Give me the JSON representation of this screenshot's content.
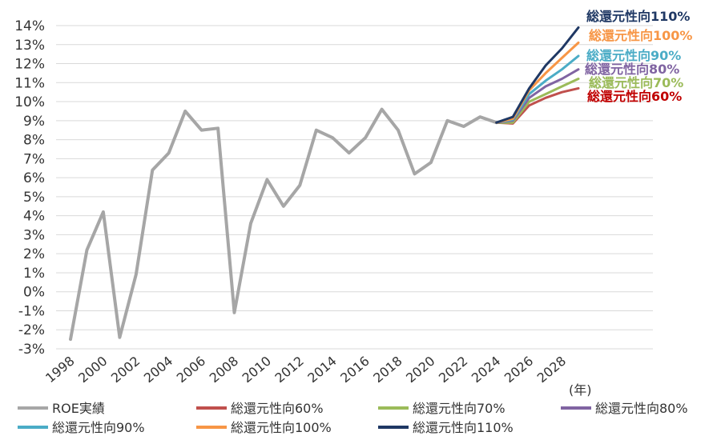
{
  "chart_data": {
    "type": "line",
    "unit_label": "(年)",
    "y_ticks": [
      "14%",
      "13%",
      "12%",
      "11%",
      "10%",
      "9%",
      "8%",
      "7%",
      "6%",
      "5%",
      "4%",
      "3%",
      "2%",
      "1%",
      "0%",
      "-1%",
      "-2%",
      "-3%"
    ],
    "ylim": [
      -3,
      14
    ],
    "x_tick_labels": [
      "1998",
      "2000",
      "2002",
      "2004",
      "2006",
      "2008",
      "2010",
      "2012",
      "2014",
      "2016",
      "2018",
      "2020",
      "2022",
      "2024",
      "2026",
      "2028"
    ],
    "xlim": [
      1998,
      2029
    ],
    "series": [
      {
        "name": "ROE実績",
        "color": "#a6a6a6",
        "width": 4,
        "x": [
          1998,
          1999,
          2000,
          2001,
          2002,
          2003,
          2004,
          2005,
          2006,
          2007,
          2008,
          2009,
          2010,
          2011,
          2012,
          2013,
          2014,
          2015,
          2016,
          2017,
          2018,
          2019,
          2020,
          2021,
          2022,
          2023,
          2024
        ],
        "values": [
          -2.5,
          2.2,
          4.2,
          -2.4,
          0.9,
          6.4,
          7.3,
          9.5,
          8.5,
          8.6,
          -1.1,
          3.6,
          5.9,
          4.5,
          5.6,
          8.5,
          8.1,
          7.3,
          8.1,
          9.6,
          8.5,
          6.2,
          6.8,
          9.0,
          8.7,
          9.2,
          8.9
        ]
      },
      {
        "name": "総還元性向60%",
        "color": "#c0504d",
        "width": 3,
        "x": [
          2024,
          2025,
          2026,
          2027,
          2028,
          2029
        ],
        "values": [
          8.9,
          8.85,
          9.8,
          10.2,
          10.5,
          10.7
        ]
      },
      {
        "name": "総還元性向70%",
        "color": "#9bbb59",
        "width": 3,
        "x": [
          2024,
          2025,
          2026,
          2027,
          2028,
          2029
        ],
        "values": [
          8.9,
          8.9,
          10.0,
          10.4,
          10.8,
          11.2
        ]
      },
      {
        "name": "総還元性向80%",
        "color": "#8064a2",
        "width": 3,
        "x": [
          2024,
          2025,
          2026,
          2027,
          2028,
          2029
        ],
        "values": [
          8.9,
          9.0,
          10.2,
          10.8,
          11.2,
          11.7
        ]
      },
      {
        "name": "総還元性向90%",
        "color": "#4bacc6",
        "width": 3,
        "x": [
          2024,
          2025,
          2026,
          2027,
          2028,
          2029
        ],
        "values": [
          8.9,
          9.05,
          10.4,
          11.1,
          11.7,
          12.4
        ]
      },
      {
        "name": "総還元性向100%",
        "color": "#f79646",
        "width": 3,
        "x": [
          2024,
          2025,
          2026,
          2027,
          2028,
          2029
        ],
        "values": [
          8.9,
          9.1,
          10.6,
          11.5,
          12.3,
          13.1
        ]
      },
      {
        "name": "総還元性向110%",
        "color": "#1f3864",
        "width": 3,
        "x": [
          2024,
          2025,
          2026,
          2027,
          2028,
          2029
        ],
        "values": [
          8.9,
          9.2,
          10.7,
          11.9,
          12.8,
          13.9
        ]
      }
    ],
    "end_labels": [
      {
        "text": "総還元性向110%",
        "color": "#1f3864"
      },
      {
        "text": "総還元性向100%",
        "color": "#f79646"
      },
      {
        "text": "総還元性向90%",
        "color": "#4bacc6"
      },
      {
        "text": "総還元性向80%",
        "color": "#8064a2"
      },
      {
        "text": "総還元性向70%",
        "color": "#9bbb59"
      },
      {
        "text": "総還元性向60%",
        "color": "#c00000"
      }
    ],
    "legend": [
      {
        "label": "ROE実績",
        "color": "#a6a6a6"
      },
      {
        "label": "総還元性向60%",
        "color": "#c0504d"
      },
      {
        "label": "総還元性向70%",
        "color": "#9bbb59"
      },
      {
        "label": "総還元性向80%",
        "color": "#8064a2"
      },
      {
        "label": "総還元性向90%",
        "color": "#4bacc6"
      },
      {
        "label": "総還元性向100%",
        "color": "#f79646"
      },
      {
        "label": "総還元性向110%",
        "color": "#1f3864"
      }
    ]
  }
}
